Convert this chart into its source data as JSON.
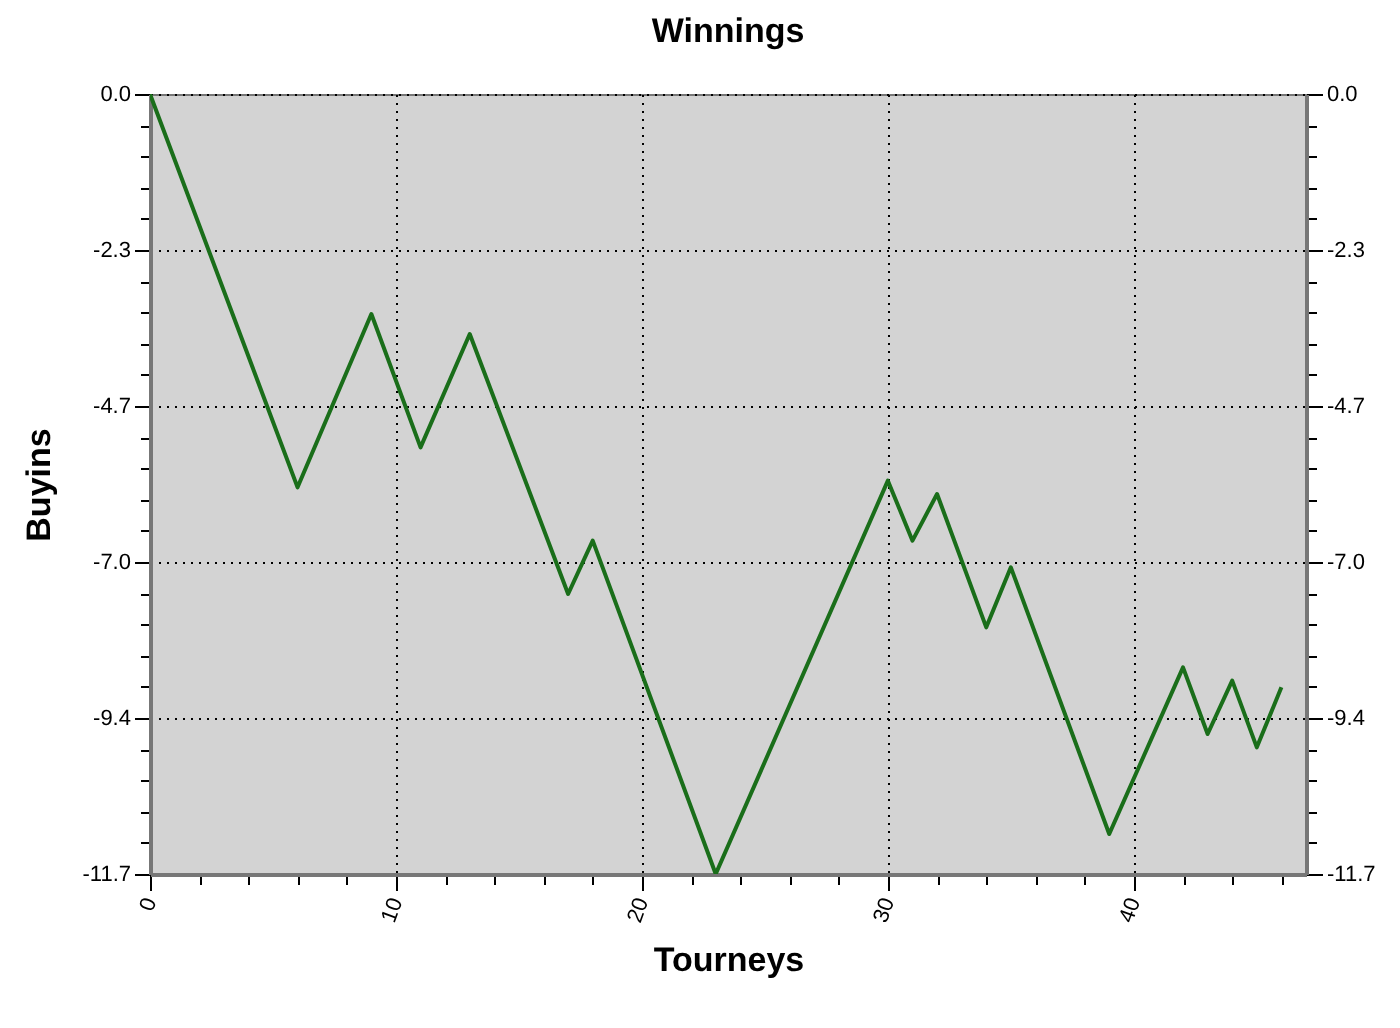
{
  "chart_data": {
    "type": "line",
    "title": "Winnings",
    "xlabel": "Tourneys",
    "ylabel": "Buyins",
    "series": [
      {
        "color": "#1a6e1a",
        "x": [
          0,
          6,
          9,
          11,
          13,
          17,
          18,
          23,
          30,
          31,
          32,
          34,
          35,
          39,
          42,
          43,
          44,
          45,
          46
        ],
        "values": [
          0,
          -5.9,
          -3.3,
          -5.3,
          -3.6,
          -7.5,
          -6.7,
          -11.7,
          -5.8,
          -6.7,
          -6.0,
          -8.0,
          -7.1,
          -11.1,
          -8.6,
          -9.6,
          -8.8,
          -9.8,
          -8.9
        ]
      }
    ],
    "xlim": [
      0,
      47
    ],
    "xticks": [
      0,
      {
        "value": 2,
        "label": null
      },
      {
        "value": 4,
        "label": null
      },
      {
        "value": 6,
        "label": null
      },
      {
        "value": 8,
        "label": null
      },
      10,
      {
        "value": 12,
        "label": null
      },
      {
        "value": 14,
        "label": null
      },
      {
        "value": 16,
        "label": null
      },
      {
        "value": 18,
        "label": null
      },
      20,
      {
        "value": 22,
        "label": null
      },
      {
        "value": 24,
        "label": null
      },
      {
        "value": 26,
        "label": null
      },
      {
        "value": 28,
        "label": null
      },
      30,
      {
        "value": 32,
        "label": null
      },
      {
        "value": 34,
        "label": null
      },
      {
        "value": 36,
        "label": null
      },
      {
        "value": 38,
        "label": null
      },
      40,
      {
        "value": 42,
        "label": null
      },
      {
        "value": 44,
        "label": null
      },
      {
        "value": 46,
        "label": null
      }
    ],
    "ylim": [
      -11.7,
      0
    ],
    "yticks": [
      {
        "value": 0,
        "label": "0.0"
      },
      {
        "value": -0.47,
        "label": null
      },
      {
        "value": -0.94,
        "label": null
      },
      {
        "value": -1.4,
        "label": null
      },
      {
        "value": -1.87,
        "label": null
      },
      {
        "value": -2.34,
        "label": "-2.3"
      },
      {
        "value": -2.81,
        "label": null
      },
      {
        "value": -3.28,
        "label": null
      },
      {
        "value": -3.74,
        "label": null
      },
      {
        "value": -4.21,
        "label": null
      },
      {
        "value": -4.68,
        "label": "-4.7"
      },
      {
        "value": -5.15,
        "label": null
      },
      {
        "value": -5.62,
        "label": null
      },
      {
        "value": -6.08,
        "label": null
      },
      {
        "value": -6.55,
        "label": null
      },
      {
        "value": -7.02,
        "label": "-7.0"
      },
      {
        "value": -7.49,
        "label": null
      },
      {
        "value": -7.96,
        "label": null
      },
      {
        "value": -8.42,
        "label": null
      },
      {
        "value": -8.89,
        "label": null
      },
      {
        "value": -9.36,
        "label": "-9.4"
      },
      {
        "value": -9.83,
        "label": null
      },
      {
        "value": -10.3,
        "label": null
      },
      {
        "value": -10.76,
        "label": null
      },
      {
        "value": -11.23,
        "label": null
      },
      {
        "value": -11.7,
        "label": "-11.7"
      }
    ],
    "y2lim": [
      -11.7,
      0
    ],
    "y2ticks": [
      {
        "value": 0,
        "label": "0.0"
      },
      {
        "value": -0.47,
        "label": null
      },
      {
        "value": -0.94,
        "label": null
      },
      {
        "value": -1.4,
        "label": null
      },
      {
        "value": -1.87,
        "label": null
      },
      {
        "value": -2.34,
        "label": "-2.3"
      },
      {
        "value": -2.81,
        "label": null
      },
      {
        "value": -3.28,
        "label": null
      },
      {
        "value": -3.74,
        "label": null
      },
      {
        "value": -4.21,
        "label": null
      },
      {
        "value": -4.68,
        "label": "-4.7"
      },
      {
        "value": -5.15,
        "label": null
      },
      {
        "value": -5.62,
        "label": null
      },
      {
        "value": -6.08,
        "label": null
      },
      {
        "value": -6.55,
        "label": null
      },
      {
        "value": -7.02,
        "label": "-7.0"
      },
      {
        "value": -7.49,
        "label": null
      },
      {
        "value": -7.96,
        "label": null
      },
      {
        "value": -8.42,
        "label": null
      },
      {
        "value": -8.89,
        "label": null
      },
      {
        "value": -9.36,
        "label": "-9.4"
      },
      {
        "value": -9.83,
        "label": null
      },
      {
        "value": -10.3,
        "label": null
      },
      {
        "value": -10.76,
        "label": null
      },
      {
        "value": -11.23,
        "label": null
      },
      {
        "value": -11.7,
        "label": "-11.7"
      }
    ],
    "grid": true,
    "line_style": "solid"
  }
}
